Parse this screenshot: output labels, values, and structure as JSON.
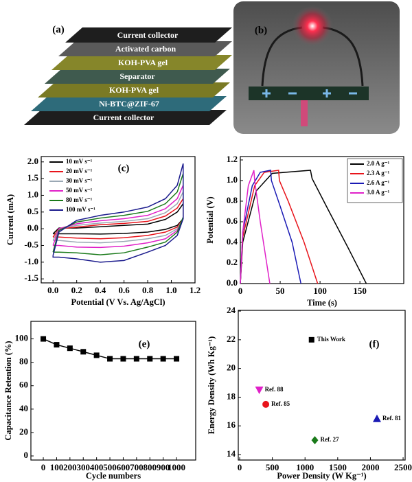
{
  "diagram": {
    "label": "(a)",
    "layers": [
      "Current collector",
      "Activated carbon",
      "KOH-PVA gel",
      "Separator",
      "KOH-PVA gel",
      "Ni-BTC@ZIF-67",
      "Current collector"
    ]
  },
  "photo": {
    "label": "(b)"
  },
  "chart_data": [
    {
      "type": "line",
      "panel_label": "(c)",
      "x_label": "Potential (V Vs. Ag/AgCl)",
      "y_label": "Current (mA)",
      "legend": "upper left",
      "x": [
        0,
        0.05,
        0.2,
        0.4,
        0.6,
        0.8,
        0.95,
        1.05,
        1.1,
        1.1,
        1.05,
        0.95,
        0.8,
        0.6,
        0.4,
        0.2,
        0.05,
        0,
        0
      ],
      "series": [
        {
          "name": "10 mV s⁻¹",
          "color": "#000000",
          "values": [
            -0.15,
            0.02,
            0.02,
            0.06,
            0.1,
            0.14,
            0.28,
            0.5,
            0.75,
            0.3,
            0.1,
            -0.02,
            -0.1,
            -0.14,
            -0.16,
            -0.15,
            -0.15,
            -0.15,
            -0.15
          ]
        },
        {
          "name": "20 mV s⁻¹",
          "color": "#e8141b",
          "values": [
            -0.25,
            0,
            0.05,
            0.12,
            0.16,
            0.22,
            0.38,
            0.62,
            0.9,
            0.3,
            0.05,
            -0.1,
            -0.2,
            -0.27,
            -0.3,
            -0.28,
            -0.25,
            -0.25,
            -0.25
          ]
        },
        {
          "name": "30 mV s⁻¹",
          "color": "#9aa8b4",
          "values": [
            -0.35,
            0,
            0.1,
            0.17,
            0.22,
            0.3,
            0.48,
            0.75,
            1.1,
            0.3,
            0,
            -0.2,
            -0.3,
            -0.38,
            -0.42,
            -0.4,
            -0.35,
            -0.35,
            -0.35
          ]
        },
        {
          "name": "50 mV s⁻¹",
          "color": "#e020c8",
          "values": [
            -0.5,
            0,
            0.15,
            0.24,
            0.3,
            0.4,
            0.6,
            0.9,
            1.3,
            0.3,
            -0.05,
            -0.3,
            -0.42,
            -0.52,
            -0.56,
            -0.55,
            -0.5,
            -0.5,
            -0.5
          ]
        },
        {
          "name": "80 mV s⁻¹",
          "color": "#1a7a1a",
          "values": [
            -0.7,
            -0.05,
            0.2,
            0.32,
            0.4,
            0.52,
            0.75,
            1.1,
            1.65,
            0.35,
            -0.1,
            -0.4,
            -0.55,
            -0.72,
            -0.78,
            -0.72,
            -0.7,
            -0.7,
            -0.7
          ]
        },
        {
          "name": "100 mV s⁻¹",
          "color": "#1a1a8c",
          "values": [
            -0.8,
            -0.1,
            0.25,
            0.4,
            0.5,
            0.65,
            0.9,
            1.3,
            1.95,
            0.3,
            -0.2,
            -0.5,
            -0.7,
            -0.95,
            -1,
            -0.9,
            -0.85,
            -0.85,
            -0.8
          ]
        }
      ],
      "xlim": [
        -0.1,
        1.2
      ],
      "ylim": [
        -1.62,
        2.16
      ],
      "xticks": [
        {
          "value": 0,
          "label": "0.0"
        },
        0.2,
        0.4,
        0.6,
        0.8,
        {
          "value": 1,
          "label": "1.0"
        },
        1.2
      ],
      "yticks": [
        {
          "value": -1.5,
          "label": "-1.5"
        },
        {
          "value": -1,
          "label": "-1.0"
        },
        -0.5,
        {
          "value": 0,
          "label": "0.0"
        },
        0.5,
        {
          "value": 1,
          "label": "1.0"
        },
        1.5,
        {
          "value": 2,
          "label": "2.0"
        }
      ]
    },
    {
      "type": "line",
      "panel_label": "(d)",
      "x_label": "Time (s)",
      "y_label": "Potential (V)",
      "legend": "upper right",
      "series": [
        {
          "name": "2.0 A g⁻¹",
          "color": "#000000",
          "x": [
            0,
            3,
            20,
            40,
            88,
            90,
            110,
            135,
            158
          ],
          "values": [
            0,
            0.4,
            0.9,
            1.07,
            1.1,
            1.02,
            0.72,
            0.35,
            0
          ]
        },
        {
          "name": "2.3 A g⁻¹",
          "color": "#e8141b",
          "x": [
            0,
            3,
            18,
            30,
            48,
            49,
            60,
            80,
            97
          ],
          "values": [
            0,
            0.45,
            0.95,
            1.08,
            1.1,
            1,
            0.8,
            0.4,
            0
          ]
        },
        {
          "name": "2.6 A g⁻¹",
          "color": "#1a1ab4",
          "x": [
            0,
            3,
            15,
            25,
            38,
            39,
            50,
            65,
            76
          ],
          "values": [
            0,
            0.5,
            0.95,
            1.08,
            1.1,
            1,
            0.75,
            0.4,
            0
          ]
        },
        {
          "name": "3.0 A g⁻¹",
          "color": "#e020c8",
          "x": [
            0,
            3,
            10,
            17,
            18,
            25,
            37
          ],
          "values": [
            0,
            0.5,
            0.95,
            1.1,
            1,
            0.6,
            0
          ]
        }
      ],
      "xlim": [
        0,
        205
      ],
      "ylim": [
        0,
        1.233
      ],
      "xticks": [
        0,
        50,
        100,
        150
      ],
      "yticks": [
        {
          "value": 0,
          "label": "0.0"
        },
        0.2,
        0.4,
        0.6,
        0.8,
        {
          "value": 1,
          "label": "1.0"
        },
        1.2
      ]
    },
    {
      "type": "line",
      "panel_label": "(e)",
      "x_label": "Cycle numbers",
      "y_label": "Capacitance Retention (%)",
      "marker": "square",
      "series": [
        {
          "color": "#000000",
          "x": [
            0,
            100,
            200,
            300,
            400,
            500,
            600,
            700,
            800,
            900,
            1000
          ],
          "values": [
            100,
            95,
            92,
            89,
            86,
            83,
            83,
            83,
            83,
            83,
            83
          ]
        }
      ],
      "xlim": [
        -93,
        1144
      ],
      "ylim": [
        -3.5,
        115
      ],
      "xticks": [
        0,
        100,
        200,
        300,
        400,
        500,
        600,
        700,
        800,
        900,
        1000
      ],
      "yticks": [
        0,
        20,
        40,
        60,
        80,
        100
      ]
    },
    {
      "type": "scatter",
      "panel_label": "(f)",
      "x_label": "Power Density (W Kg⁻¹)",
      "y_label": "Energy Density (Wh Kg⁻¹)",
      "series": [
        {
          "name": "This Work",
          "color": "#000000",
          "marker": "square",
          "x": [
            1100
          ],
          "values": [
            22
          ]
        },
        {
          "name": "Ref. 88",
          "color": "#e020c8",
          "marker": "triangle-down",
          "x": [
            300
          ],
          "values": [
            18.5
          ]
        },
        {
          "name": "Ref. 85",
          "color": "#e8141b",
          "marker": "circle",
          "x": [
            400
          ],
          "values": [
            17.5
          ]
        },
        {
          "name": "Ref. 81",
          "color": "#1a1ab4",
          "marker": "triangle-up",
          "x": [
            2100
          ],
          "values": [
            16.5
          ]
        },
        {
          "name": "Ref. 27",
          "color": "#1a7a1a",
          "marker": "diamond",
          "x": [
            1150
          ],
          "values": [
            15
          ]
        }
      ],
      "xlim": [
        -21,
        2531
      ],
      "ylim": [
        13.62,
        24.05
      ],
      "xticks": [
        0,
        500,
        1000,
        1500,
        2000,
        2500
      ],
      "yticks": [
        14,
        16,
        18,
        20,
        22,
        24
      ]
    }
  ]
}
